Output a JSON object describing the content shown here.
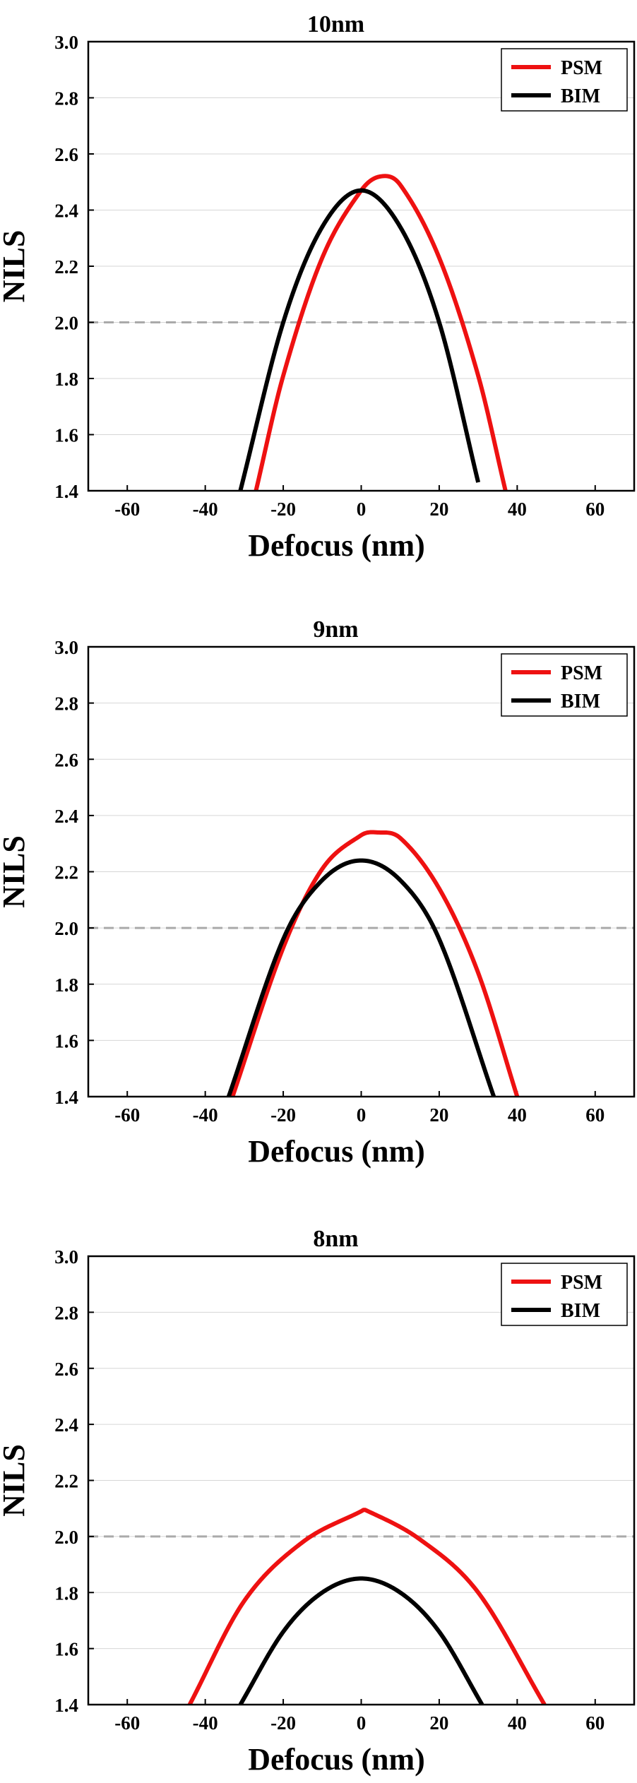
{
  "chart_data": [
    {
      "type": "line",
      "title": "10nm",
      "xlabel": "Defocus (nm)",
      "ylabel": "NILS",
      "xlim": [
        -70,
        70
      ],
      "ylim": [
        1.4,
        3.0
      ],
      "xticks": [
        -60,
        -40,
        -20,
        0,
        20,
        40,
        60
      ],
      "yticks": [
        1.4,
        1.6,
        1.8,
        2.0,
        2.2,
        2.4,
        2.6,
        2.8,
        3.0
      ],
      "grid": "horizontal",
      "legend": "top-right",
      "reference_line": {
        "y": 2.0,
        "style": "dashed",
        "color": "#aaaaaa"
      },
      "series": [
        {
          "name": "PSM",
          "color": "#ee1111",
          "x": [
            -27,
            -20,
            -10,
            0,
            5,
            10,
            20,
            30,
            37
          ],
          "y": [
            1.4,
            1.81,
            2.23,
            2.47,
            2.52,
            2.49,
            2.23,
            1.81,
            1.4
          ]
        },
        {
          "name": "BIM",
          "color": "#000000",
          "x": [
            -31,
            -20,
            -10,
            0,
            10,
            20,
            30
          ],
          "y": [
            1.4,
            2.0,
            2.34,
            2.47,
            2.34,
            2.0,
            1.43
          ]
        }
      ]
    },
    {
      "type": "line",
      "title": "9nm",
      "xlabel": "Defocus (nm)",
      "ylabel": "NILS",
      "xlim": [
        -70,
        70
      ],
      "ylim": [
        1.4,
        3.0
      ],
      "xticks": [
        -60,
        -40,
        -20,
        0,
        20,
        40,
        60
      ],
      "yticks": [
        1.4,
        1.6,
        1.8,
        2.0,
        2.2,
        2.4,
        2.6,
        2.8,
        3.0
      ],
      "grid": "horizontal",
      "legend": "top-right",
      "reference_line": {
        "y": 2.0,
        "style": "dashed",
        "color": "#aaaaaa"
      },
      "series": [
        {
          "name": "PSM",
          "color": "#ee1111",
          "x": [
            -33,
            -20,
            -10,
            0,
            4,
            10,
            20,
            30,
            40
          ],
          "y": [
            1.4,
            1.93,
            2.21,
            2.33,
            2.34,
            2.32,
            2.14,
            1.84,
            1.4
          ]
        },
        {
          "name": "BIM",
          "color": "#000000",
          "x": [
            -34,
            -20,
            -10,
            0,
            10,
            20,
            34
          ],
          "y": [
            1.4,
            1.96,
            2.17,
            2.24,
            2.17,
            1.96,
            1.4
          ]
        }
      ]
    },
    {
      "type": "line",
      "title": "8nm",
      "xlabel": "Defocus (nm)",
      "ylabel": "NILS",
      "xlim": [
        -70,
        70
      ],
      "ylim": [
        1.4,
        3.0
      ],
      "xticks": [
        -60,
        -40,
        -20,
        0,
        20,
        40,
        60
      ],
      "yticks": [
        1.4,
        1.6,
        1.8,
        2.0,
        2.2,
        2.4,
        2.6,
        2.8,
        3.0
      ],
      "grid": "horizontal",
      "legend": "top-right",
      "reference_line": {
        "y": 2.0,
        "style": "dashed",
        "color": "#aaaaaa"
      },
      "series": [
        {
          "name": "PSM",
          "color": "#ee1111",
          "x": [
            -44,
            -30,
            -15,
            0,
            1,
            15,
            30,
            47
          ],
          "y": [
            1.4,
            1.77,
            1.98,
            2.09,
            2.095,
            1.99,
            1.8,
            1.4
          ]
        },
        {
          "name": "BIM",
          "color": "#000000",
          "x": [
            -31,
            -20,
            -10,
            0,
            10,
            20,
            31
          ],
          "y": [
            1.4,
            1.66,
            1.8,
            1.85,
            1.8,
            1.66,
            1.4
          ]
        }
      ]
    }
  ]
}
